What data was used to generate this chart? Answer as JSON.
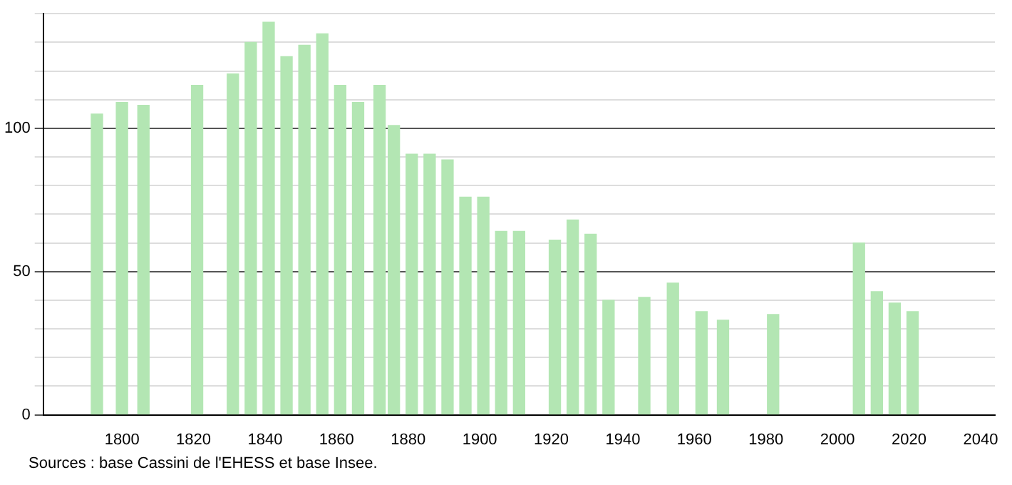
{
  "chart_data": {
    "type": "bar",
    "x": [
      1793,
      1800,
      1806,
      1821,
      1831,
      1836,
      1841,
      1846,
      1851,
      1856,
      1861,
      1866,
      1872,
      1876,
      1881,
      1886,
      1891,
      1896,
      1901,
      1906,
      1911,
      1921,
      1926,
      1931,
      1936,
      1946,
      1954,
      1962,
      1968,
      1982,
      2006,
      2011,
      2016,
      2021
    ],
    "values": [
      105,
      109,
      108,
      115,
      119,
      130,
      137,
      125,
      129,
      133,
      115,
      109,
      115,
      101,
      91,
      91,
      89,
      76,
      76,
      64,
      64,
      61,
      68,
      63,
      40,
      41,
      46,
      36,
      33,
      35,
      60,
      43,
      39,
      36
    ],
    "color": "#b3e6b3",
    "xlim": [
      1778,
      2044
    ],
    "xticks": [
      1800,
      1820,
      1840,
      1860,
      1880,
      1900,
      1920,
      1940,
      1960,
      1980,
      2000,
      2020,
      2040
    ],
    "ylim": [
      0,
      140
    ],
    "yticks": [
      0,
      {
        "value": 10,
        "label": null
      },
      {
        "value": 20,
        "label": null
      },
      {
        "value": 30,
        "label": null
      },
      {
        "value": 40,
        "label": null
      },
      50,
      {
        "value": 60,
        "label": null
      },
      {
        "value": 70,
        "label": null
      },
      {
        "value": 80,
        "label": null
      },
      {
        "value": 90,
        "label": null
      },
      100,
      {
        "value": 110,
        "label": null
      },
      {
        "value": 120,
        "label": null
      },
      {
        "value": 130,
        "label": null
      },
      {
        "value": 140,
        "label": null
      }
    ],
    "grid": "y",
    "annotations": [
      "Sources : base Cassini de l'EHESS et base Insee."
    ]
  }
}
